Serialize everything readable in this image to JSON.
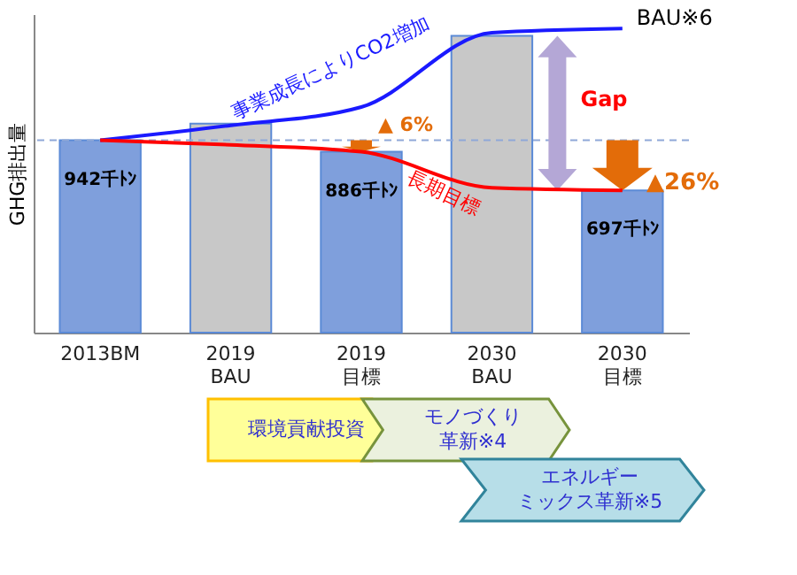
{
  "chart_data": {
    "type": "bar",
    "ylabel": "GHG排出量",
    "ylim": [
      0,
      1560
    ],
    "categories": [
      "2013BM",
      "2019\nBAU",
      "2019\n目標",
      "2030\nBAU",
      "2030\n目標"
    ],
    "series": [
      {
        "colors": [
          "#7f9fdc",
          "#c8c8c8",
          "#7f9fdc",
          "#c8c8c8",
          "#7f9fdc"
        ],
        "values": [
          942,
          1024,
          886,
          1454,
          697
        ],
        "value_labels": [
          "942千ﾄﾝ",
          null,
          "886千ﾄﾝ",
          null,
          "697千ﾄﾝ"
        ]
      },
      {
        "type": "line",
        "name": "BAU※6",
        "color": "#1a1aff",
        "values": [
          942,
          1015,
          1105,
          1469,
          1490
        ]
      },
      {
        "type": "line",
        "name": "長期目標",
        "color": "#ff0000",
        "values": [
          942,
          920,
          886,
          710,
          697
        ]
      }
    ],
    "ref_lines": [
      {
        "axis": "y",
        "value": 942,
        "line_style": "dashed",
        "color": "#8fa8d8"
      }
    ],
    "annotations": [
      "事業成長によりCO2増加",
      "▲ 6%",
      "Gap",
      "▲26%",
      "環境貢献投資",
      "モノづくり革新※4",
      "エネルギーミックス革新※5"
    ],
    "legend": false,
    "grid": false
  }
}
